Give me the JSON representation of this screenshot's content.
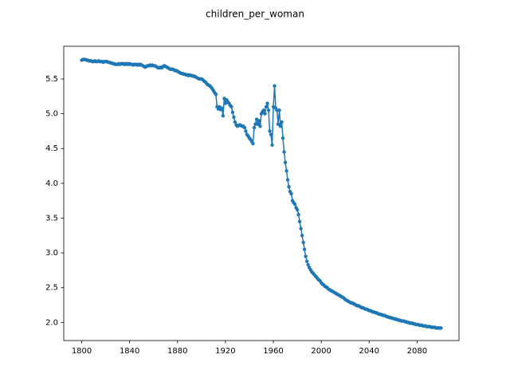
{
  "chart_data": {
    "type": "line",
    "title": "children_per_woman",
    "x": [
      1800,
      1801,
      1802,
      1803,
      1804,
      1805,
      1806,
      1807,
      1808,
      1809,
      1810,
      1811,
      1812,
      1813,
      1814,
      1815,
      1816,
      1817,
      1818,
      1819,
      1820,
      1821,
      1822,
      1823,
      1824,
      1825,
      1826,
      1827,
      1828,
      1829,
      1830,
      1831,
      1832,
      1833,
      1834,
      1835,
      1836,
      1837,
      1838,
      1839,
      1840,
      1841,
      1842,
      1843,
      1844,
      1845,
      1846,
      1847,
      1848,
      1849,
      1850,
      1851,
      1852,
      1853,
      1854,
      1855,
      1856,
      1857,
      1858,
      1859,
      1860,
      1861,
      1862,
      1863,
      1864,
      1865,
      1866,
      1867,
      1868,
      1869,
      1870,
      1871,
      1872,
      1873,
      1874,
      1875,
      1876,
      1877,
      1878,
      1879,
      1880,
      1881,
      1882,
      1883,
      1884,
      1885,
      1886,
      1887,
      1888,
      1889,
      1890,
      1891,
      1892,
      1893,
      1894,
      1895,
      1896,
      1897,
      1898,
      1899,
      1900,
      1901,
      1902,
      1903,
      1904,
      1905,
      1906,
      1907,
      1908,
      1909,
      1910,
      1911,
      1912,
      1913,
      1914,
      1915,
      1916,
      1917,
      1918,
      1919,
      1920,
      1921,
      1922,
      1923,
      1924,
      1925,
      1926,
      1927,
      1928,
      1929,
      1930,
      1931,
      1932,
      1933,
      1934,
      1935,
      1936,
      1937,
      1938,
      1939,
      1940,
      1941,
      1942,
      1943,
      1944,
      1945,
      1946,
      1947,
      1948,
      1949,
      1950,
      1951,
      1952,
      1953,
      1954,
      1955,
      1956,
      1957,
      1958,
      1959,
      1960,
      1961,
      1962,
      1963,
      1964,
      1965,
      1966,
      1967,
      1968,
      1969,
      1970,
      1971,
      1972,
      1973,
      1974,
      1975,
      1976,
      1977,
      1978,
      1979,
      1980,
      1981,
      1982,
      1983,
      1984,
      1985,
      1986,
      1987,
      1988,
      1989,
      1990,
      1991,
      1992,
      1993,
      1994,
      1995,
      1996,
      1997,
      1998,
      1999,
      2000,
      2001,
      2002,
      2003,
      2004,
      2005,
      2006,
      2007,
      2008,
      2009,
      2010,
      2011,
      2012,
      2013,
      2014,
      2015,
      2016,
      2017,
      2018,
      2019,
      2020,
      2021,
      2022,
      2023,
      2024,
      2025,
      2026,
      2027,
      2028,
      2029,
      2030,
      2031,
      2032,
      2033,
      2034,
      2035,
      2036,
      2037,
      2038,
      2039,
      2040,
      2041,
      2042,
      2043,
      2044,
      2045,
      2046,
      2047,
      2048,
      2049,
      2050,
      2051,
      2052,
      2053,
      2054,
      2055,
      2056,
      2057,
      2058,
      2059,
      2060,
      2061,
      2062,
      2063,
      2064,
      2065,
      2066,
      2067,
      2068,
      2069,
      2070,
      2071,
      2072,
      2073,
      2074,
      2075,
      2076,
      2077,
      2078,
      2079,
      2080,
      2081,
      2082,
      2083,
      2084,
      2085,
      2086,
      2087,
      2088,
      2089,
      2090,
      2091,
      2092,
      2093,
      2094,
      2095,
      2096,
      2097,
      2098,
      2099,
      2100
    ],
    "series": [
      {
        "name": "children_per_woman",
        "color": "#1f77b4",
        "values": [
          5.77,
          5.78,
          5.78,
          5.78,
          5.77,
          5.77,
          5.76,
          5.76,
          5.76,
          5.75,
          5.75,
          5.76,
          5.75,
          5.75,
          5.76,
          5.75,
          5.75,
          5.75,
          5.74,
          5.75,
          5.75,
          5.75,
          5.74,
          5.74,
          5.73,
          5.73,
          5.72,
          5.72,
          5.71,
          5.71,
          5.71,
          5.72,
          5.71,
          5.72,
          5.72,
          5.71,
          5.72,
          5.71,
          5.72,
          5.71,
          5.72,
          5.71,
          5.71,
          5.7,
          5.71,
          5.71,
          5.7,
          5.71,
          5.7,
          5.71,
          5.7,
          5.69,
          5.68,
          5.67,
          5.68,
          5.69,
          5.69,
          5.7,
          5.69,
          5.7,
          5.69,
          5.69,
          5.68,
          5.67,
          5.66,
          5.66,
          5.67,
          5.66,
          5.68,
          5.69,
          5.68,
          5.67,
          5.66,
          5.65,
          5.64,
          5.64,
          5.64,
          5.63,
          5.62,
          5.62,
          5.61,
          5.6,
          5.59,
          5.58,
          5.58,
          5.57,
          5.57,
          5.56,
          5.56,
          5.55,
          5.56,
          5.55,
          5.55,
          5.54,
          5.54,
          5.53,
          5.52,
          5.51,
          5.5,
          5.5,
          5.5,
          5.49,
          5.47,
          5.46,
          5.44,
          5.42,
          5.41,
          5.4,
          5.38,
          5.36,
          5.33,
          5.3,
          5.28,
          5.1,
          5.07,
          5.1,
          5.06,
          5.08,
          4.97,
          5.22,
          5.15,
          5.2,
          5.17,
          5.15,
          5.12,
          5.1,
          5.02,
          4.95,
          4.88,
          4.84,
          4.82,
          4.83,
          4.84,
          4.83,
          4.82,
          4.82,
          4.8,
          4.75,
          4.7,
          4.68,
          4.65,
          4.63,
          4.6,
          4.57,
          4.8,
          4.85,
          4.92,
          4.85,
          4.9,
          4.82,
          5.0,
          5.03,
          5.05,
          5.0,
          5.1,
          5.15,
          5.05,
          4.75,
          4.7,
          4.55,
          5.1,
          5.4,
          5.08,
          5.05,
          4.85,
          5.05,
          4.82,
          4.88,
          4.65,
          4.45,
          4.3,
          4.18,
          4.05,
          3.95,
          3.88,
          3.85,
          3.75,
          3.72,
          3.7,
          3.65,
          3.62,
          3.55,
          3.45,
          3.35,
          3.25,
          3.15,
          3.05,
          2.95,
          2.88,
          2.83,
          2.79,
          2.76,
          2.73,
          2.71,
          2.69,
          2.67,
          2.65,
          2.63,
          2.61,
          2.6,
          2.57,
          2.55,
          2.54,
          2.52,
          2.51,
          2.5,
          2.48,
          2.47,
          2.46,
          2.45,
          2.44,
          2.43,
          2.42,
          2.41,
          2.4,
          2.39,
          2.38,
          2.37,
          2.36,
          2.35,
          2.33,
          2.32,
          2.31,
          2.3,
          2.29,
          2.28,
          2.28,
          2.27,
          2.26,
          2.25,
          2.24,
          2.24,
          2.23,
          2.22,
          2.21,
          2.21,
          2.2,
          2.19,
          2.19,
          2.18,
          2.17,
          2.17,
          2.16,
          2.15,
          2.15,
          2.14,
          2.14,
          2.13,
          2.12,
          2.12,
          2.11,
          2.11,
          2.1,
          2.1,
          2.09,
          2.08,
          2.08,
          2.07,
          2.07,
          2.06,
          2.06,
          2.05,
          2.05,
          2.04,
          2.04,
          2.03,
          2.03,
          2.02,
          2.02,
          2.02,
          2.01,
          2.01,
          2.0,
          2.0,
          1.99,
          1.99,
          1.99,
          1.98,
          1.98,
          1.97,
          1.97,
          1.97,
          1.96,
          1.96,
          1.96,
          1.95,
          1.95,
          1.95,
          1.94,
          1.94,
          1.94,
          1.94,
          1.93,
          1.93,
          1.93,
          1.93,
          1.92,
          1.92,
          1.92,
          1.92,
          1.92
        ]
      }
    ],
    "xlim": [
      1785,
      2115
    ],
    "ylim": [
      1.74,
      5.97
    ],
    "xticks": [
      1800,
      1840,
      1880,
      1920,
      1960,
      2000,
      2040,
      2080
    ],
    "yticks": [
      {
        "value": 2,
        "label": "2.0"
      },
      2.5,
      {
        "value": 3,
        "label": "3.0"
      },
      3.5,
      {
        "value": 4,
        "label": "4.0"
      },
      4.5,
      {
        "value": 5,
        "label": "5.0"
      },
      5.5
    ],
    "grid": false,
    "markers": true
  }
}
